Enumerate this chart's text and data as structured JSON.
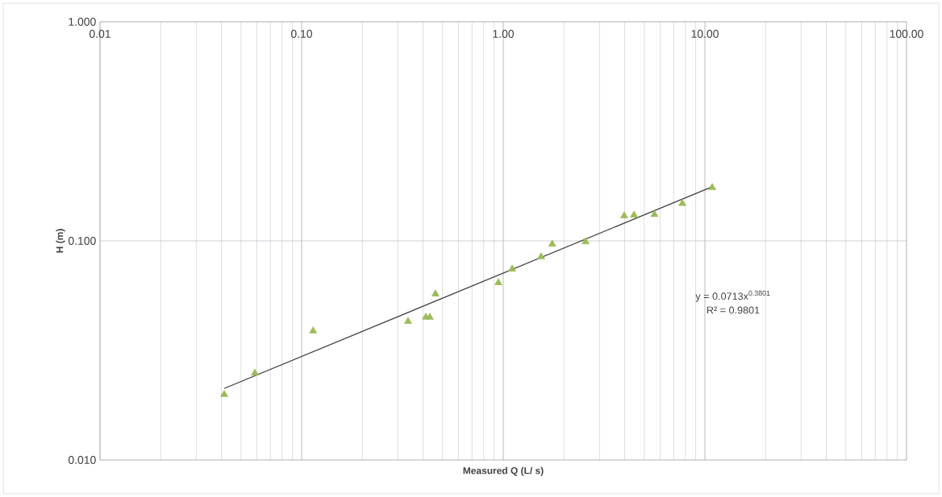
{
  "chart_data": {
    "type": "scatter",
    "xlabel": "Measured Q (L/ s)",
    "ylabel": "H (m)",
    "log": "xy",
    "grid": true,
    "marker": "triangle",
    "xlim": [
      0.01,
      100
    ],
    "ylim": [
      0.01,
      1
    ],
    "xticks": [
      {
        "value": 0.01,
        "label": "0.01"
      },
      {
        "value": 0.1,
        "label": "0.10"
      },
      {
        "value": 1,
        "label": "1.00"
      },
      {
        "value": 10,
        "label": "10.00"
      },
      {
        "value": 100,
        "label": "100.00"
      }
    ],
    "yticks": [
      {
        "value": 0.01,
        "label": "0.010"
      },
      {
        "value": 0.1,
        "label": "0.100"
      },
      {
        "value": 1,
        "label": "1.000"
      }
    ],
    "annotations": [
      "y = 0.0713x$^{0.3801}$",
      "R² = 0.9801"
    ],
    "series": [
      {
        "color": "#9bbb59",
        "x": [
          0.0413,
          0.0586,
          0.114,
          0.337,
          0.413,
          0.432,
          0.461,
          0.946,
          1.107,
          1.54,
          1.75,
          2.56,
          3.98,
          4.45,
          5.62,
          7.73,
          10.87
        ],
        "values": [
          0.0199,
          0.0249,
          0.0388,
          0.0429,
          0.0448,
          0.0448,
          0.0572,
          0.0644,
          0.0743,
          0.0845,
          0.0966,
          0.099,
          0.13,
          0.131,
          0.132,
          0.148,
          0.175
        ]
      },
      {
        "type": "line",
        "color": "#404040",
        "marker": "none",
        "x": [
          0.0413,
          10.87
        ],
        "values": [
          0.0212,
          0.1766
        ]
      }
    ]
  }
}
